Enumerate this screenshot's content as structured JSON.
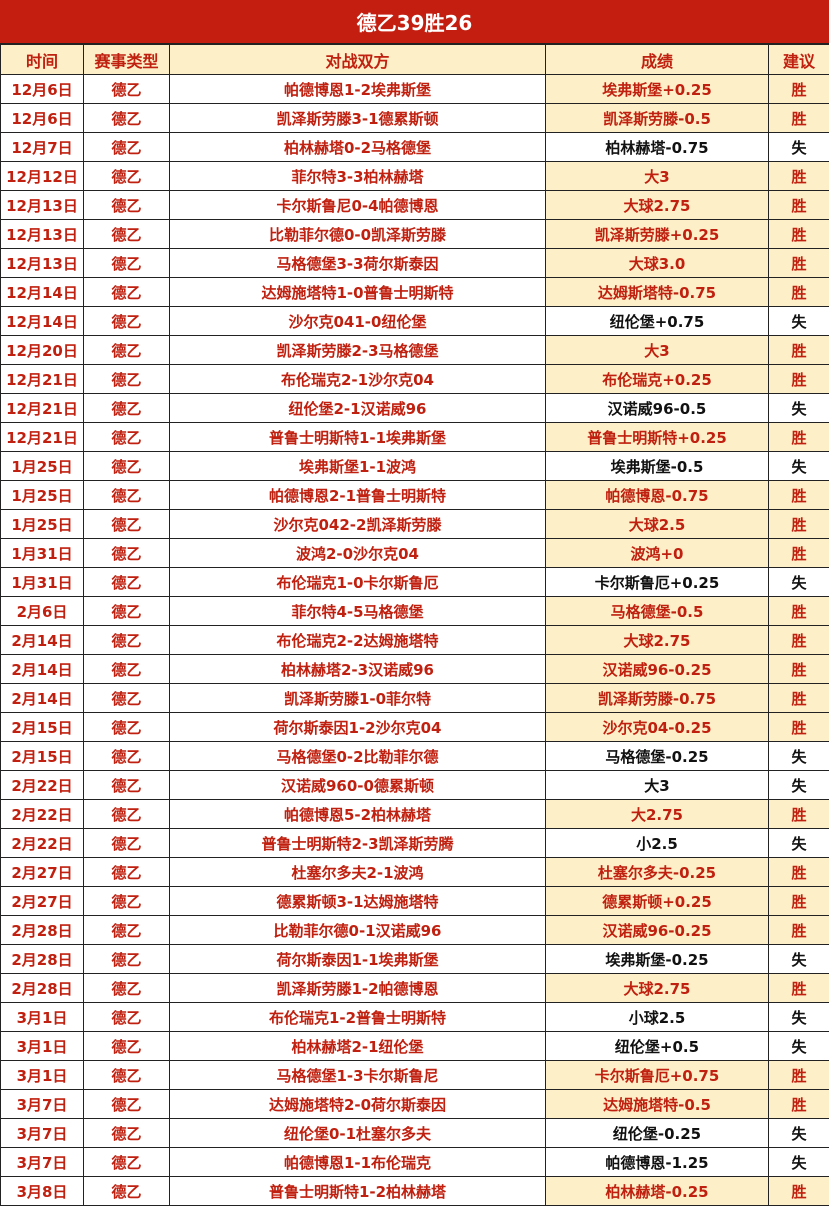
{
  "title": "德乙39胜26",
  "headers": [
    "时间",
    "赛事类型",
    "对战双方",
    "成绩",
    "建议"
  ],
  "colors": {
    "title_bg": "#c41e10",
    "highlight_bg": "#fdf0c8",
    "text_red": "#c0200f",
    "text_black": "#111111"
  },
  "rows": [
    [
      "12月6日",
      "德乙",
      "帕德博恩1-2埃弗斯堡",
      "埃弗斯堡+0.25",
      "胜"
    ],
    [
      "12月6日",
      "德乙",
      "凯泽斯劳滕3-1德累斯顿",
      "凯泽斯劳滕-0.5",
      "胜"
    ],
    [
      "12月7日",
      "德乙",
      "柏林赫塔0-2马格德堡",
      "柏林赫塔-0.75",
      "失"
    ],
    [
      "12月12日",
      "德乙",
      "菲尔特3-3柏林赫塔",
      "大3",
      "胜"
    ],
    [
      "12月13日",
      "德乙",
      "卡尔斯鲁尼0-4帕德博恩",
      "大球2.75",
      "胜"
    ],
    [
      "12月13日",
      "德乙",
      "比勒菲尔德0-0凯泽斯劳滕",
      "凯泽斯劳滕+0.25",
      "胜"
    ],
    [
      "12月13日",
      "德乙",
      "马格德堡3-3荷尔斯泰因",
      "大球3.0",
      "胜"
    ],
    [
      "12月14日",
      "德乙",
      "达姆施塔特1-0普鲁士明斯特",
      "达姆斯塔特-0.75",
      "胜"
    ],
    [
      "12月14日",
      "德乙",
      "沙尔克041-0纽伦堡",
      "纽伦堡+0.75",
      "失"
    ],
    [
      "12月20日",
      "德乙",
      "凯泽斯劳滕2-3马格德堡",
      "大3",
      "胜"
    ],
    [
      "12月21日",
      "德乙",
      "布伦瑞克2-1沙尔克04",
      "布伦瑞克+0.25",
      "胜"
    ],
    [
      "12月21日",
      "德乙",
      "纽伦堡2-1汉诺威96",
      "汉诺威96-0.5",
      "失"
    ],
    [
      "12月21日",
      "德乙",
      "普鲁士明斯特1-1埃弗斯堡",
      "普鲁士明斯特+0.25",
      "胜"
    ],
    [
      "1月25日",
      "德乙",
      "埃弗斯堡1-1波鸿",
      "埃弗斯堡-0.5",
      "失"
    ],
    [
      "1月25日",
      "德乙",
      "帕德博恩2-1普鲁士明斯特",
      "帕德博恩-0.75",
      "胜"
    ],
    [
      "1月25日",
      "德乙",
      "沙尔克042-2凯泽斯劳滕",
      "大球2.5",
      "胜"
    ],
    [
      "1月31日",
      "德乙",
      "波鸿2-0沙尔克04",
      "波鸿+0",
      "胜"
    ],
    [
      "1月31日",
      "德乙",
      "布伦瑞克1-0卡尔斯鲁厄",
      "卡尔斯鲁厄+0.25",
      "失"
    ],
    [
      "2月6日",
      "德乙",
      "菲尔特4-5马格德堡",
      "马格德堡-0.5",
      "胜"
    ],
    [
      "2月14日",
      "德乙",
      "布伦瑞克2-2达姆施塔特",
      "大球2.75",
      "胜"
    ],
    [
      "2月14日",
      "德乙",
      "柏林赫塔2-3汉诺威96",
      "汉诺威96-0.25",
      "胜"
    ],
    [
      "2月14日",
      "德乙",
      "凯泽斯劳滕1-0菲尔特",
      "凯泽斯劳滕-0.75",
      "胜"
    ],
    [
      "2月15日",
      "德乙",
      "荷尔斯泰因1-2沙尔克04",
      "沙尔克04-0.25",
      "胜"
    ],
    [
      "2月15日",
      "德乙",
      "马格德堡0-2比勒菲尔德",
      "马格德堡-0.25",
      "失"
    ],
    [
      "2月22日",
      "德乙",
      "汉诺威960-0德累斯顿",
      "大3",
      "失"
    ],
    [
      "2月22日",
      "德乙",
      "帕德博恩5-2柏林赫塔",
      "大2.75",
      "胜"
    ],
    [
      "2月22日",
      "德乙",
      "普鲁士明斯特2-3凯泽斯劳腾",
      "小2.5",
      "失"
    ],
    [
      "2月27日",
      "德乙",
      "杜塞尔多夫2-1波鸿",
      "杜塞尔多夫-0.25",
      "胜"
    ],
    [
      "2月27日",
      "德乙",
      "德累斯顿3-1达姆施塔特",
      "德累斯顿+0.25",
      "胜"
    ],
    [
      "2月28日",
      "德乙",
      "比勒菲尔德0-1汉诺威96",
      "汉诺威96-0.25",
      "胜"
    ],
    [
      "2月28日",
      "德乙",
      "荷尔斯泰因1-1埃弗斯堡",
      "埃弗斯堡-0.25",
      "失"
    ],
    [
      "2月28日",
      "德乙",
      "凯泽斯劳滕1-2帕德博恩",
      "大球2.75",
      "胜"
    ],
    [
      "3月1日",
      "德乙",
      "布伦瑞克1-2普鲁士明斯特",
      "小球2.5",
      "失"
    ],
    [
      "3月1日",
      "德乙",
      "柏林赫塔2-1纽伦堡",
      "纽伦堡+0.5",
      "失"
    ],
    [
      "3月1日",
      "德乙",
      "马格德堡1-3卡尔斯鲁尼",
      "卡尔斯鲁厄+0.75",
      "胜"
    ],
    [
      "3月7日",
      "德乙",
      "达姆施塔特2-0荷尔斯泰因",
      "达姆施塔特-0.5",
      "胜"
    ],
    [
      "3月7日",
      "德乙",
      "纽伦堡0-1杜塞尔多夫",
      "纽伦堡-0.25",
      "失"
    ],
    [
      "3月7日",
      "德乙",
      "帕德博恩1-1布伦瑞克",
      "帕德博恩-1.25",
      "失"
    ],
    [
      "3月8日",
      "德乙",
      "普鲁士明斯特1-2柏林赫塔",
      "柏林赫塔-0.25",
      "胜"
    ]
  ]
}
